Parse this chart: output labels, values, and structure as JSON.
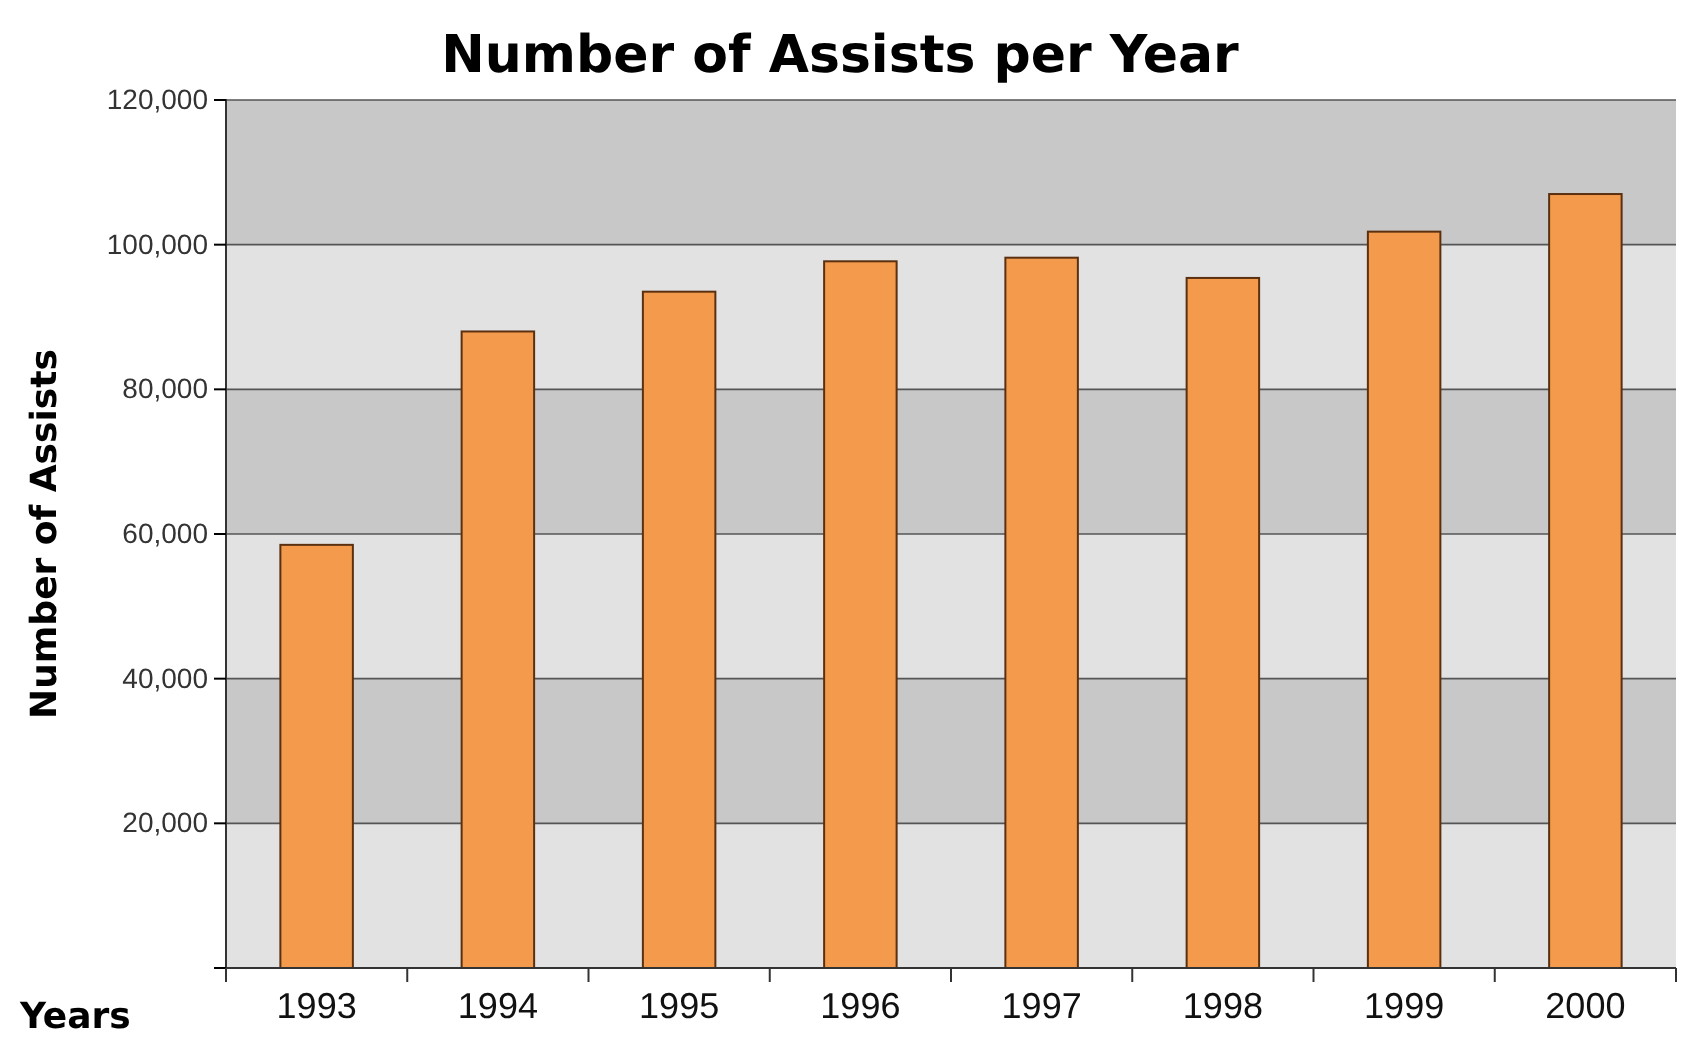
{
  "chart_data": {
    "type": "bar",
    "title": "Number of Assists per Year",
    "xlabel": "Years",
    "ylabel": "Number of Assists",
    "categories": [
      "1993",
      "1994",
      "1995",
      "1996",
      "1997",
      "1998",
      "1999",
      "2000"
    ],
    "values": [
      58500,
      88000,
      93500,
      97700,
      98200,
      95400,
      101800,
      107000
    ],
    "color": "#f39a4c",
    "ylim": [
      0,
      120000
    ],
    "yticks": [
      {
        "value": 0,
        "label": null
      },
      {
        "value": 20000,
        "label": "20,000"
      },
      {
        "value": 40000,
        "label": "40,000"
      },
      {
        "value": 60000,
        "label": "60,000"
      },
      {
        "value": 80000,
        "label": "80,000"
      },
      {
        "value": 100000,
        "label": "100,000"
      },
      {
        "value": 120000,
        "label": "120,000"
      }
    ],
    "grid": "y"
  }
}
